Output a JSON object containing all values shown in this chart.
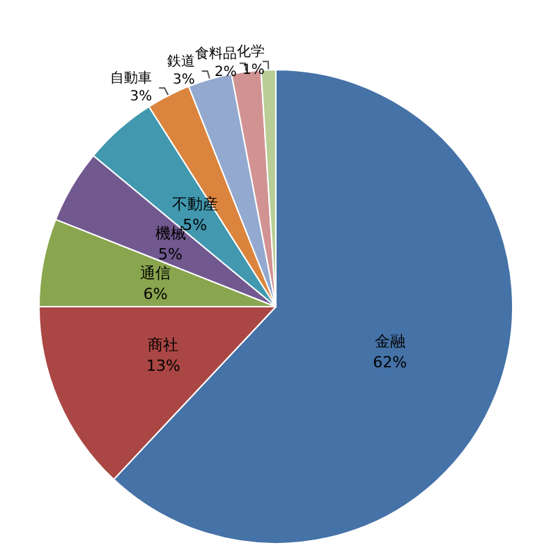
{
  "chart_data": {
    "type": "pie",
    "categories": [
      "金融",
      "商社",
      "通信",
      "機械",
      "不動産",
      "自動車",
      "鉄道",
      "食料品",
      "化学"
    ],
    "values": [
      62,
      13,
      6,
      5,
      5,
      3,
      3,
      2,
      1
    ],
    "value_labels": [
      "62%",
      "13%",
      "6%",
      "5%",
      "5%",
      "3%",
      "3%",
      "2%",
      "1%"
    ],
    "colors": [
      "#4572a7",
      "#aa4643",
      "#89a54e",
      "#71588f",
      "#4198af",
      "#db843d",
      "#93a9cf",
      "#d19392",
      "#b9cd96"
    ],
    "legend": false
  }
}
